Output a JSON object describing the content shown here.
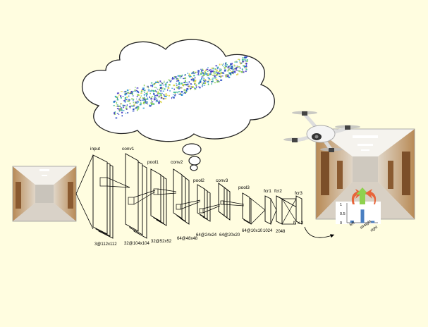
{
  "layers": {
    "input": "input",
    "conv1": "conv1",
    "pool1": "pool1",
    "conv2": "conv2",
    "pool2": "pool2",
    "conv3": "conv3",
    "pool3": "pool3",
    "fcr1": "fcr1",
    "fcr2": "fcr2",
    "fcr3": "fcr3"
  },
  "dims": {
    "input": "3@112x112",
    "conv1": "32@104x104",
    "pool1": "32@52x52",
    "conv2": "64@48x48",
    "pool2": "64@24x24",
    "conv3": "64@20x20",
    "pool3": "64@10x10",
    "fcr1": "1024",
    "fcr2": "2048",
    "fcr3": "N x 3"
  },
  "inset": {
    "y_ticks": [
      "1",
      "0.5",
      "0"
    ],
    "x_labels": [
      "left",
      "straight",
      "right"
    ],
    "values": [
      0.12,
      0.72,
      0.1
    ],
    "bar_color": "#4a7fc1",
    "arrow_colors": {
      "left": "#e8643a",
      "straight": "#8fd14f",
      "right": "#e8643a"
    }
  },
  "colors": {
    "background": "#fffde0",
    "pointcloud": [
      "#1f3fbf",
      "#1f8fd0",
      "#29b58a",
      "#7ac943",
      "#d8d23a",
      "#3a2bbf"
    ]
  }
}
